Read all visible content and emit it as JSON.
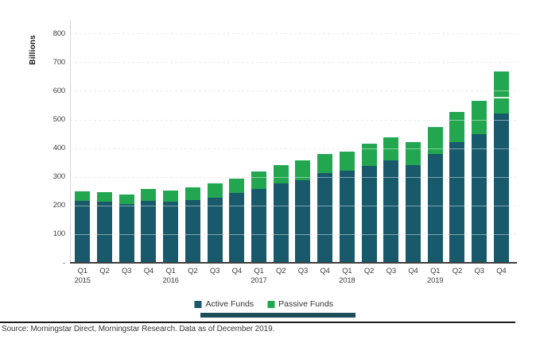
{
  "chart_data": {
    "type": "bar",
    "stacked": true,
    "title": "",
    "xlabel": "",
    "ylabel": "Billions",
    "ylim": [
      0,
      800
    ],
    "grid": {
      "horizontal": "dashed",
      "color": "#d9d9d9"
    },
    "legend_position": "bottom",
    "yticks": [
      {
        "value": 0,
        "label": "-"
      },
      {
        "value": 100,
        "label": "100"
      },
      {
        "value": 200,
        "label": "200"
      },
      {
        "value": 300,
        "label": "300"
      },
      {
        "value": 400,
        "label": "400"
      },
      {
        "value": 500,
        "label": "500"
      },
      {
        "value": 600,
        "label": "600"
      },
      {
        "value": 700,
        "label": "700"
      },
      {
        "value": 800,
        "label": "800"
      }
    ],
    "categories": [
      "Q1",
      "Q2",
      "Q3",
      "Q4",
      "Q1",
      "Q2",
      "Q3",
      "Q4",
      "Q1",
      "Q2",
      "Q3",
      "Q4",
      "Q1",
      "Q2",
      "Q3",
      "Q4",
      "Q1",
      "Q2",
      "Q3",
      "Q4"
    ],
    "year_labels": [
      {
        "index": 0,
        "label": "2015"
      },
      {
        "index": 4,
        "label": "2016"
      },
      {
        "index": 8,
        "label": "2017"
      },
      {
        "index": 12,
        "label": "2018"
      },
      {
        "index": 16,
        "label": "2019"
      }
    ],
    "series": [
      {
        "name": "Active Funds",
        "color": "#19596c",
        "values": [
          215,
          212,
          205,
          215,
          212,
          218,
          227,
          243,
          258,
          278,
          289,
          313,
          321,
          338,
          357,
          340,
          379,
          421,
          450,
          522
        ]
      },
      {
        "name": "Passive Funds",
        "color": "#22a750",
        "values": [
          35,
          34,
          32,
          42,
          41,
          46,
          50,
          50,
          60,
          62,
          68,
          66,
          68,
          78,
          82,
          81,
          96,
          105,
          115,
          146
        ]
      }
    ],
    "annotations": [
      {
        "category_index": 19,
        "type": "white-separator-line",
        "value": 578
      }
    ]
  },
  "footer": {
    "source_text": "Source: Morningstar Direct, Morningstar Research. Data as of December 2019."
  },
  "colors": {
    "active": "#19596c",
    "passive": "#22a750",
    "baseline": "#3f3f3f",
    "grid": "#d9d9d9",
    "text": "#3f3f3f"
  }
}
